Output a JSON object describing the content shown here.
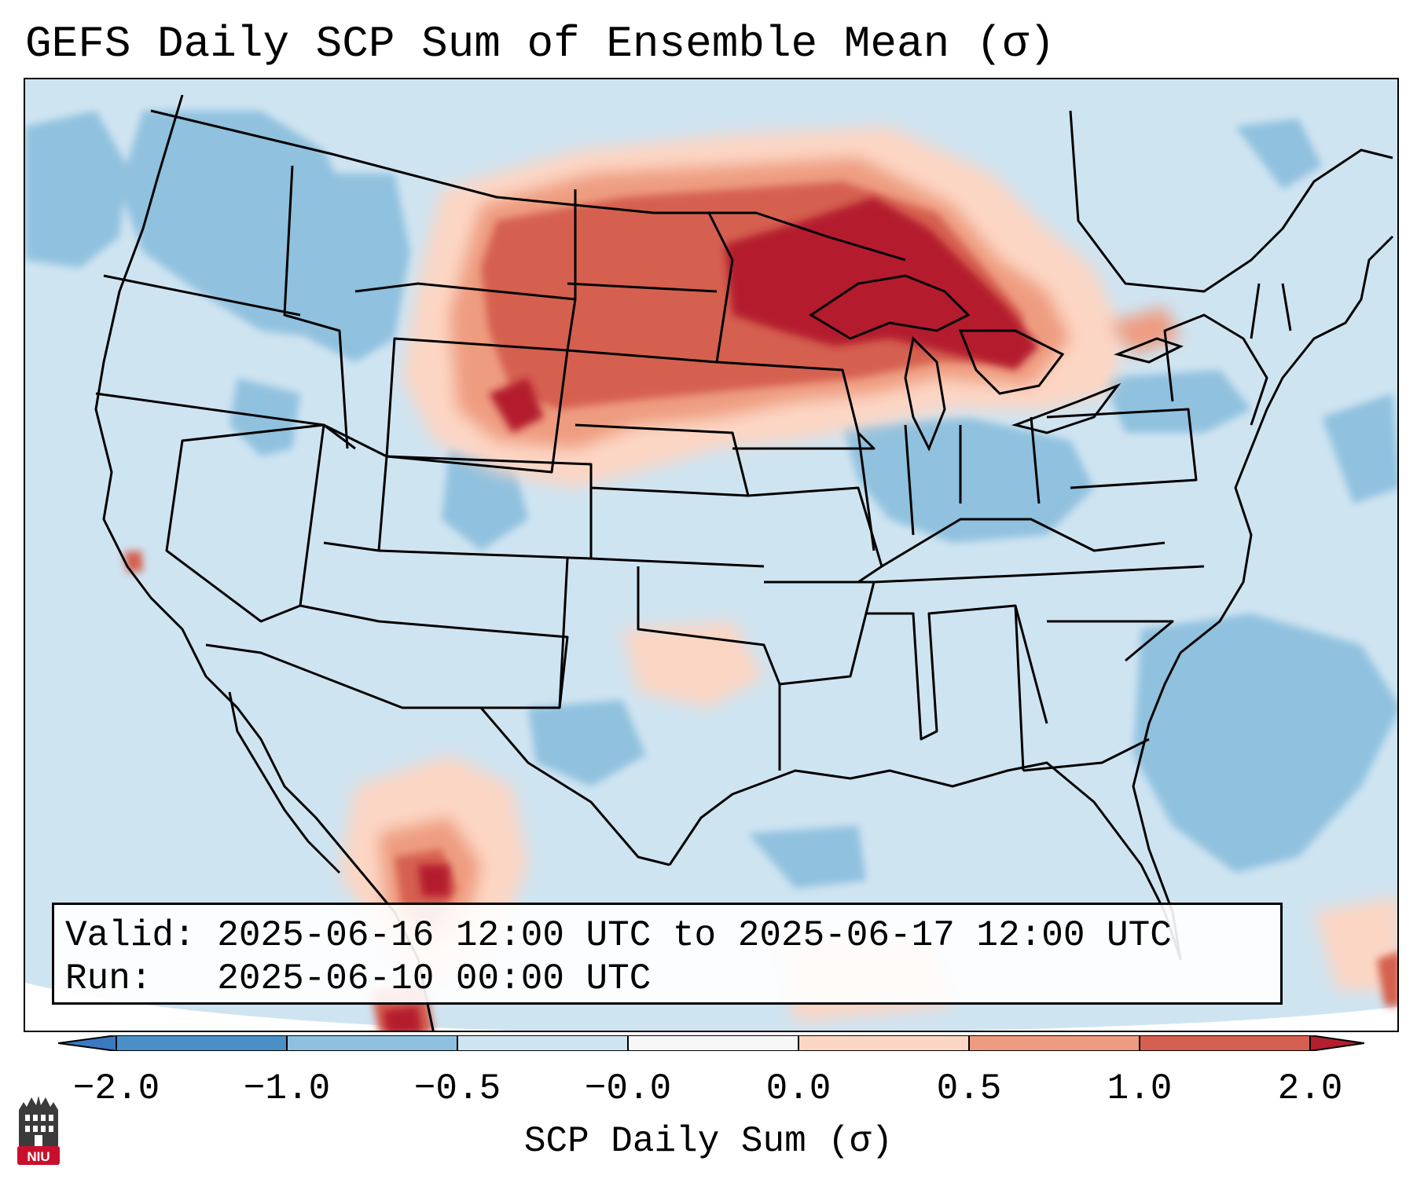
{
  "title": "GEFS Daily SCP Sum of Ensemble Mean (σ)",
  "info": {
    "valid_label": "Valid:",
    "valid_value": "2025-06-16 12:00 UTC to 2025-06-17 12:00 UTC",
    "run_label": "Run:",
    "run_value": "2025-06-10 00:00 UTC"
  },
  "colorbar": {
    "label": "SCP Daily Sum (σ)",
    "ticks": [
      "−2.0",
      "−1.0",
      "−0.5",
      "−0.0",
      "0.0",
      "0.5",
      "1.0",
      "2.0"
    ],
    "colors": [
      "#4a90c6",
      "#8dc0de",
      "#cfe4f1",
      "#f7f7f7",
      "#fcd6c4",
      "#ee9c80",
      "#d5604f",
      "#b41f2f"
    ],
    "extend_low_color": "#3a78c0",
    "extend_high_color": "#b41f2f"
  },
  "map": {
    "background_color": "#cfe4f1",
    "regions": [
      {
        "name": "upper-midwest-great-lakes",
        "anomaly": "high",
        "color": "#b41f2f"
      },
      {
        "name": "dakotas-nebraska",
        "anomaly": "positive",
        "color": "#d5604f"
      },
      {
        "name": "wyoming-montana",
        "anomaly": "positive",
        "color": "#ee9c80"
      },
      {
        "name": "pacific-northwest",
        "anomaly": "negative",
        "color": "#8dc0de"
      },
      {
        "name": "ohio-valley",
        "anomaly": "negative",
        "color": "#8dc0de"
      },
      {
        "name": "northern-mexico",
        "anomaly": "positive",
        "color": "#d5604f"
      },
      {
        "name": "atlantic-offshore",
        "anomaly": "negative",
        "color": "#8dc0de"
      }
    ]
  },
  "logo": {
    "text": "NIU",
    "color": "#c8102e"
  }
}
